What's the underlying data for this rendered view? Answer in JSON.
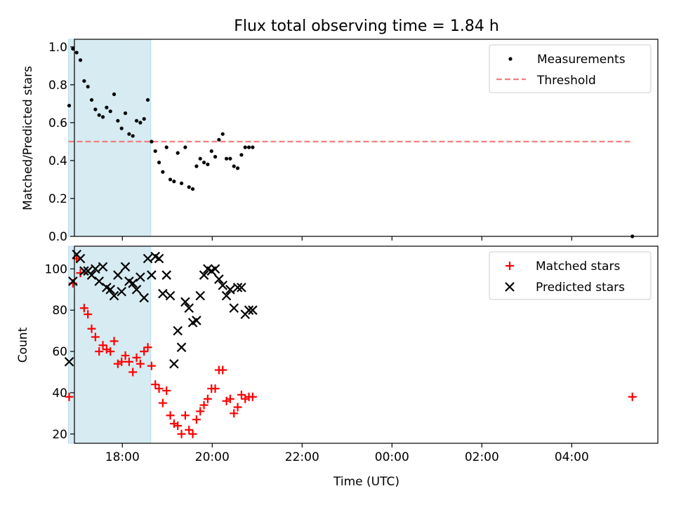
{
  "chart_data": [
    {
      "type": "scatter",
      "title": "Flux total observing time = 1.84 h",
      "ylabel": "Matched/Predicted stars",
      "xlabel": "",
      "xlim": [
        "16:56",
        "05:55"
      ],
      "ylim": [
        0,
        1.04
      ],
      "yticks": [
        0.0,
        0.2,
        0.4,
        0.6,
        0.8,
        1.0
      ],
      "ytick_labels": [
        "0.0",
        "0.2",
        "0.4",
        "0.6",
        "0.8",
        "1.0"
      ],
      "shaded_span": [
        "16:48",
        "18:38"
      ],
      "shade_color": "#add8e6",
      "legend_position": "upper right",
      "series": [
        {
          "name": "Measurements",
          "kind": "points",
          "color": "#000000",
          "x": [
            "16:49",
            "16:54",
            "16:59",
            "17:04",
            "17:09",
            "17:14",
            "17:19",
            "17:24",
            "17:29",
            "17:34",
            "17:39",
            "17:44",
            "17:49",
            "17:54",
            "17:59",
            "18:04",
            "18:09",
            "18:14",
            "18:19",
            "18:24",
            "18:29",
            "18:34",
            "18:39",
            "18:44",
            "18:49",
            "18:54",
            "18:59",
            "19:04",
            "19:09",
            "19:14",
            "19:19",
            "19:24",
            "19:29",
            "19:34",
            "19:39",
            "19:44",
            "19:49",
            "19:54",
            "19:59",
            "20:04",
            "20:09",
            "20:14",
            "20:19",
            "20:24",
            "20:29",
            "20:34",
            "20:39",
            "20:44",
            "20:49",
            "20:54",
            "05:21"
          ],
          "y": [
            0.69,
            0.99,
            0.97,
            0.93,
            0.82,
            0.79,
            0.72,
            0.67,
            0.64,
            0.63,
            0.68,
            0.66,
            0.75,
            0.61,
            0.57,
            0.65,
            0.54,
            0.53,
            0.61,
            0.6,
            0.62,
            0.72,
            0.5,
            0.45,
            0.39,
            0.34,
            0.47,
            0.3,
            0.29,
            0.44,
            0.28,
            0.47,
            0.26,
            0.25,
            0.37,
            0.41,
            0.39,
            0.38,
            0.45,
            0.42,
            0.51,
            0.54,
            0.41,
            0.41,
            0.37,
            0.36,
            0.43,
            0.47,
            0.47,
            0.47,
            0.0
          ]
        },
        {
          "name": "Threshold",
          "kind": "dashed-line",
          "color": "#f08080",
          "x": [
            "16:48",
            "05:21"
          ],
          "y": [
            0.5,
            0.5
          ]
        }
      ]
    },
    {
      "type": "scatter",
      "title": "",
      "ylabel": "Count",
      "xlabel": "Time (UTC)",
      "xlim": [
        "16:56",
        "05:55"
      ],
      "ylim": [
        15.5,
        111
      ],
      "yticks": [
        20,
        40,
        60,
        80,
        100
      ],
      "ytick_labels": [
        "20",
        "40",
        "60",
        "80",
        "100"
      ],
      "xticks": [
        "18:00",
        "20:00",
        "22:00",
        "00:00",
        "02:00",
        "04:00"
      ],
      "xtick_labels": [
        "18:00",
        "20:00",
        "22:00",
        "00:00",
        "02:00",
        "04:00"
      ],
      "shaded_span": [
        "16:48",
        "18:38"
      ],
      "shade_color": "#add8e6",
      "legend_position": "upper right",
      "series": [
        {
          "name": "Matched stars",
          "kind": "plus",
          "color": "#ff0000",
          "x": [
            "16:49",
            "16:54",
            "16:59",
            "17:04",
            "17:09",
            "17:14",
            "17:19",
            "17:24",
            "17:29",
            "17:34",
            "17:39",
            "17:44",
            "17:49",
            "17:54",
            "17:59",
            "18:04",
            "18:09",
            "18:14",
            "18:19",
            "18:24",
            "18:29",
            "18:34",
            "18:39",
            "18:44",
            "18:49",
            "18:54",
            "18:59",
            "19:04",
            "19:09",
            "19:14",
            "19:19",
            "19:24",
            "19:29",
            "19:34",
            "19:39",
            "19:44",
            "19:49",
            "19:54",
            "19:59",
            "20:04",
            "20:09",
            "20:14",
            "20:19",
            "20:24",
            "20:29",
            "20:34",
            "20:39",
            "20:44",
            "20:49",
            "20:54",
            "05:21"
          ],
          "y": [
            38,
            93,
            105,
            98,
            81,
            78,
            71,
            67,
            60,
            63,
            61,
            60,
            65,
            54,
            55,
            58,
            55,
            50,
            57,
            54,
            60,
            62,
            53,
            44,
            42,
            35,
            41,
            29,
            25,
            24,
            20,
            29,
            22,
            20,
            27,
            31,
            34,
            37,
            42,
            42,
            51,
            51,
            36,
            37,
            30,
            33,
            39,
            37,
            38,
            38,
            38
          ]
        },
        {
          "name": "Predicted stars",
          "kind": "x",
          "color": "#000000",
          "x": [
            "16:49",
            "16:54",
            "16:59",
            "17:04",
            "17:09",
            "17:14",
            "17:19",
            "17:24",
            "17:29",
            "17:34",
            "17:39",
            "17:44",
            "17:49",
            "17:54",
            "17:59",
            "18:04",
            "18:09",
            "18:14",
            "18:19",
            "18:24",
            "18:29",
            "18:34",
            "18:39",
            "18:44",
            "18:49",
            "18:54",
            "18:59",
            "19:04",
            "19:09",
            "19:14",
            "19:19",
            "19:24",
            "19:29",
            "19:34",
            "19:39",
            "19:44",
            "19:49",
            "19:54",
            "19:59",
            "20:04",
            "20:09",
            "20:14",
            "20:19",
            "20:24",
            "20:29",
            "20:34",
            "20:39",
            "20:44",
            "20:49",
            "20:54"
          ],
          "y": [
            55,
            94,
            107,
            105,
            99,
            99,
            97,
            100,
            94,
            101,
            91,
            90,
            87,
            97,
            89,
            101,
            94,
            93,
            90,
            96,
            86,
            105,
            97,
            106,
            105,
            88,
            97,
            87,
            54,
            70,
            62,
            84,
            81,
            74,
            75,
            87,
            97,
            100,
            99,
            100,
            95,
            92,
            87,
            90,
            81,
            91,
            91,
            78,
            80,
            80
          ]
        }
      ]
    }
  ]
}
